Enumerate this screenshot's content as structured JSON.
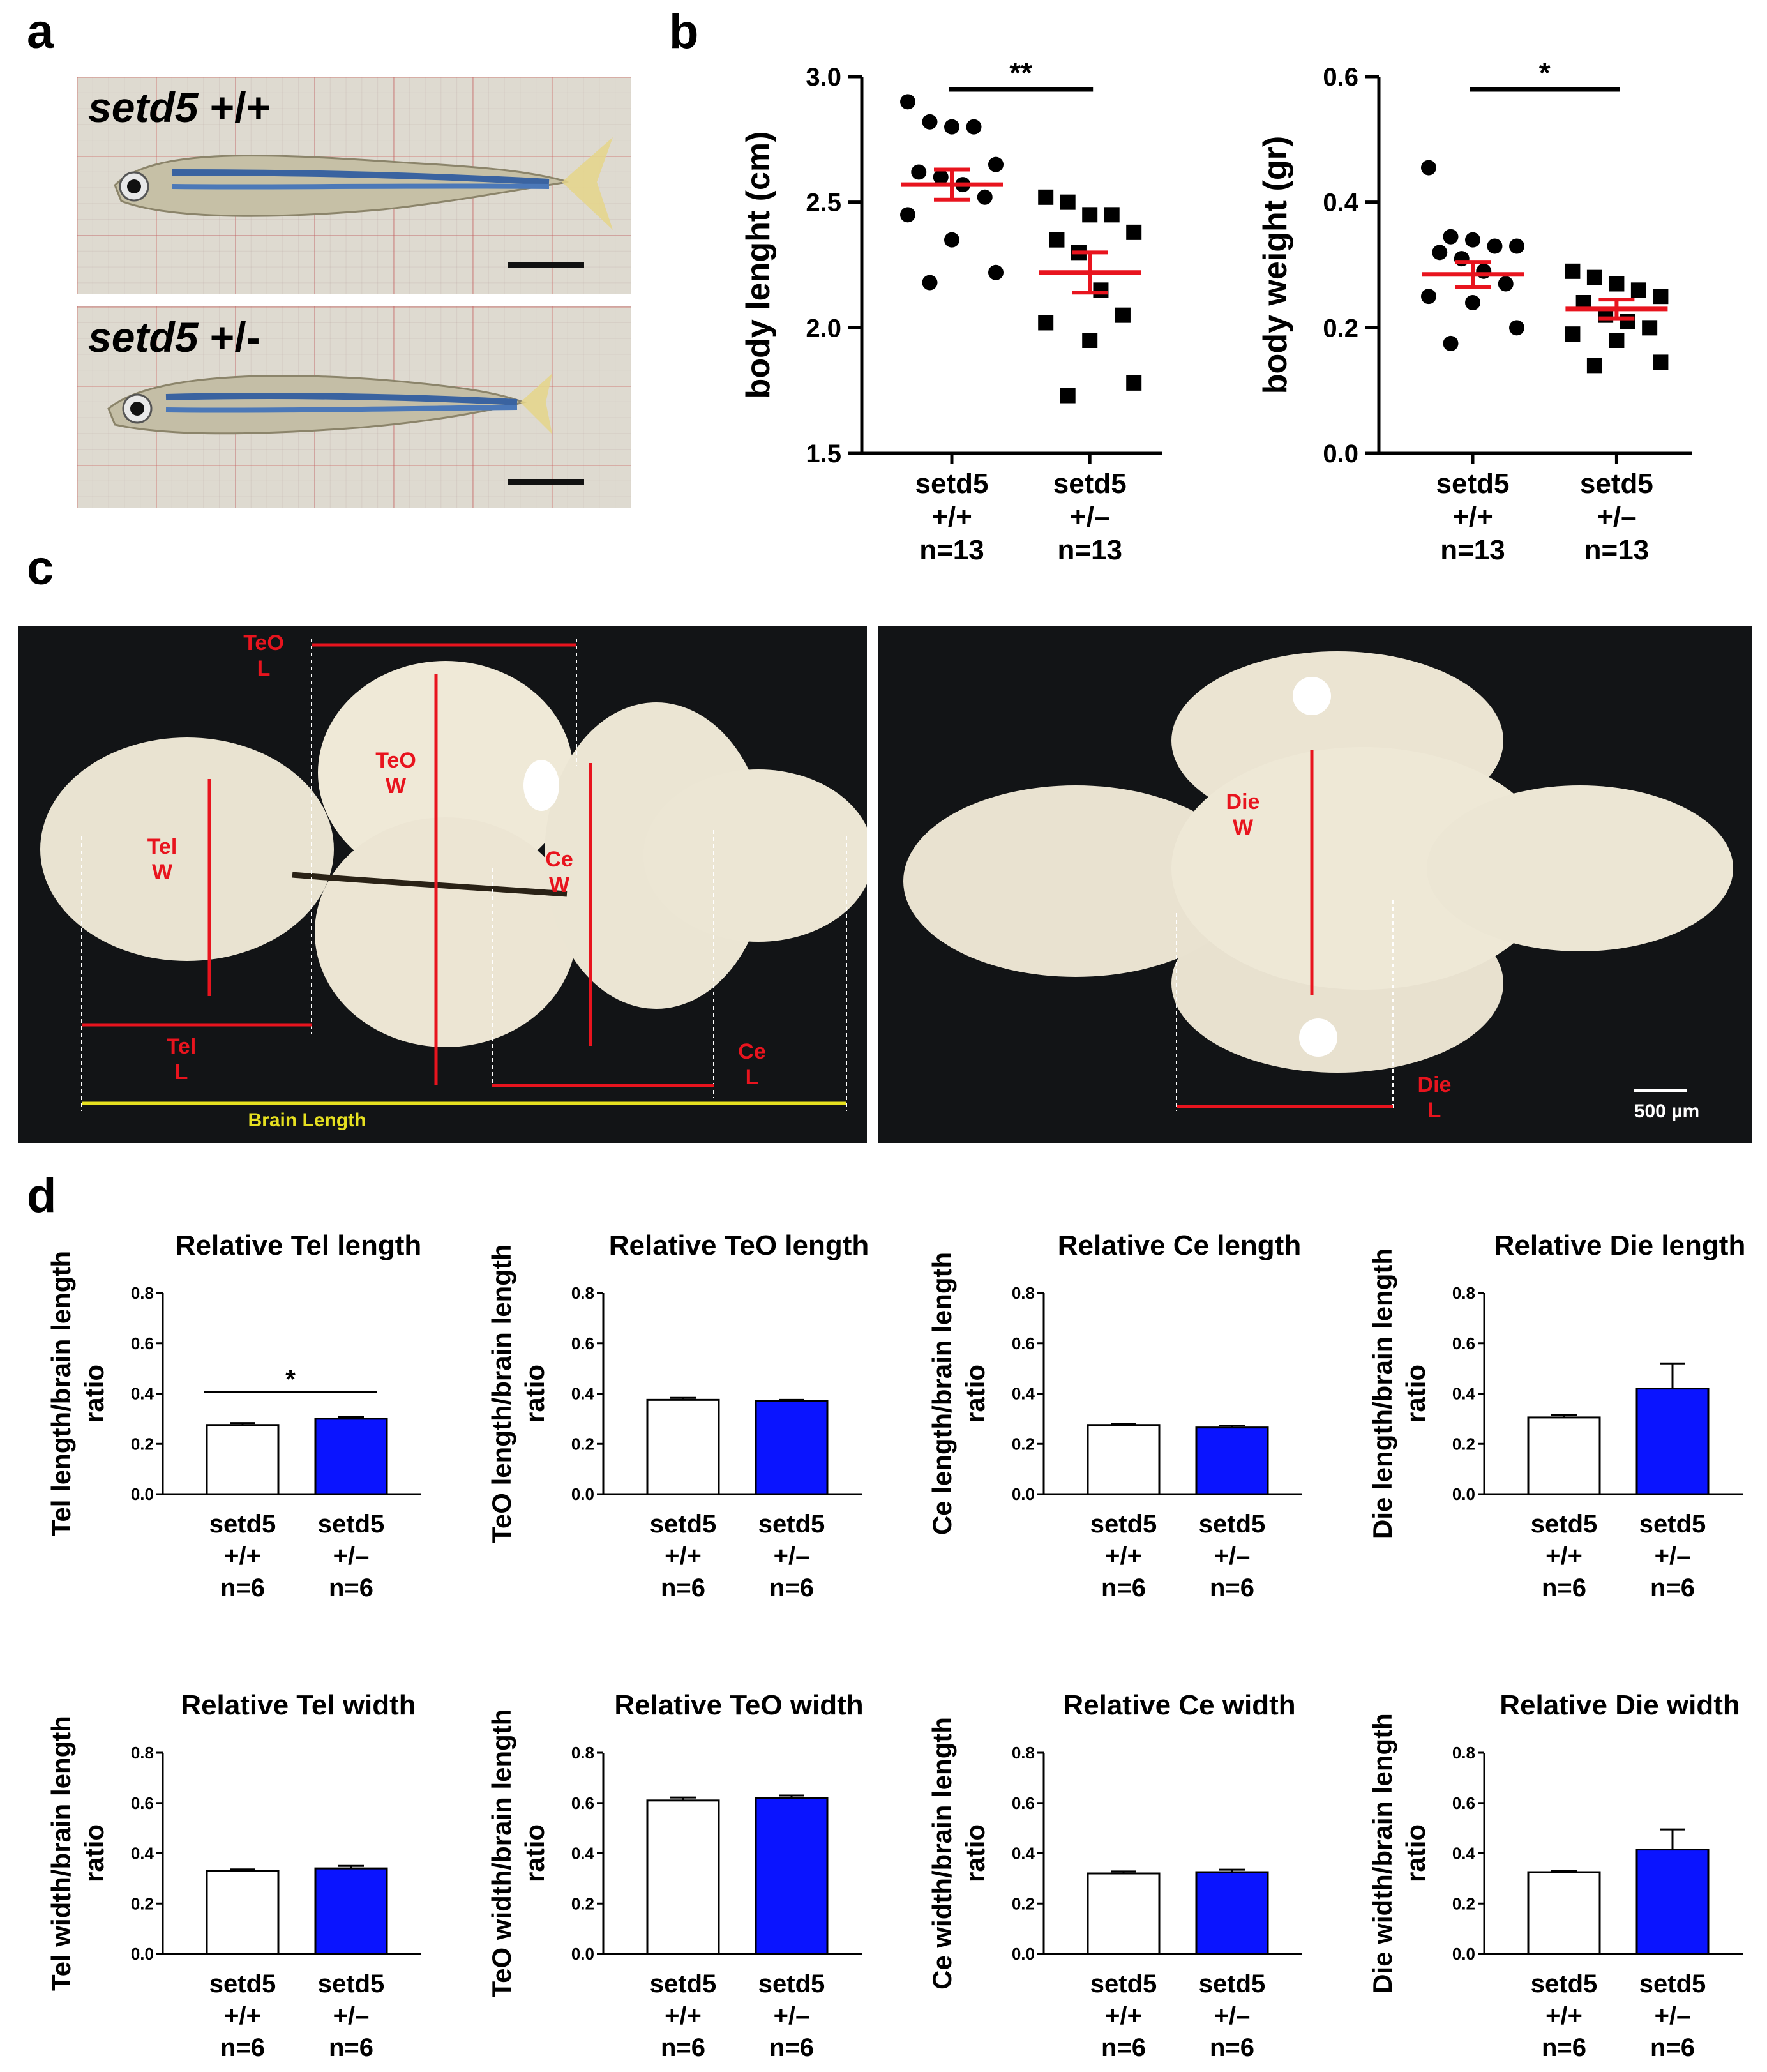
{
  "panel_labels": {
    "a": "a",
    "b": "b",
    "c": "c",
    "d": "d"
  },
  "fish_photos": [
    {
      "genotype_name": "setd5",
      "genotype_suffix": " +/+"
    },
    {
      "genotype_name": "setd5",
      "genotype_suffix": " +/-"
    }
  ],
  "brain_photos": {
    "dorsal_labels": {
      "teo_l": "TeO\nL",
      "teo_w": "TeO\nW",
      "tel_w": "Tel\nW",
      "ce_w": "Ce\nW",
      "tel_l": "Tel\nL",
      "ce_l": "Ce\nL",
      "brain_length": "Brain Length"
    },
    "ventral_labels": {
      "die_w": "Die\nW",
      "die_l": "Die\nL",
      "scale": "500 µm"
    }
  },
  "colors": {
    "wt_fill": "#ffffff",
    "het_fill": "#0a14ff",
    "mean_line": "#e8141e",
    "annotation": "#e8141e",
    "brain_length_line": "#e6e020"
  },
  "chart_data": [
    {
      "id": "body-length",
      "type": "scatter",
      "panel": "b",
      "ylabel": "body lenght (cm)",
      "ylim": [
        1.5,
        3.0
      ],
      "yticks": [
        "1.5",
        "2.0",
        "2.5",
        "3.0"
      ],
      "groups": [
        {
          "label": [
            "setd5",
            "+/+",
            "n=13"
          ],
          "marker": "circle",
          "mean": 2.57,
          "sem": 0.06,
          "points": [
            2.9,
            2.82,
            2.8,
            2.8,
            2.65,
            2.62,
            2.6,
            2.57,
            2.52,
            2.45,
            2.35,
            2.22,
            2.18
          ]
        },
        {
          "label": [
            "setd5",
            "+/–",
            "n=13"
          ],
          "marker": "square",
          "mean": 2.22,
          "sem": 0.08,
          "points": [
            2.52,
            2.5,
            2.45,
            2.45,
            2.38,
            2.35,
            2.3,
            2.15,
            2.05,
            2.02,
            1.95,
            1.78,
            1.73
          ]
        }
      ],
      "significance": "**"
    },
    {
      "id": "body-weight",
      "type": "scatter",
      "panel": "b",
      "ylabel": "body weight (gr)",
      "ylim": [
        0.0,
        0.6
      ],
      "yticks": [
        "0.0",
        "0.2",
        "0.4",
        "0.6"
      ],
      "groups": [
        {
          "label": [
            "setd5",
            "+/+",
            "n=13"
          ],
          "marker": "circle",
          "mean": 0.285,
          "sem": 0.02,
          "points": [
            0.455,
            0.345,
            0.34,
            0.33,
            0.33,
            0.32,
            0.31,
            0.29,
            0.27,
            0.25,
            0.24,
            0.2,
            0.175
          ]
        },
        {
          "label": [
            "setd5",
            "+/–",
            "n=13"
          ],
          "marker": "square",
          "mean": 0.23,
          "sem": 0.015,
          "points": [
            0.29,
            0.28,
            0.27,
            0.26,
            0.25,
            0.24,
            0.22,
            0.21,
            0.2,
            0.19,
            0.18,
            0.145,
            0.14
          ]
        }
      ],
      "significance": "*"
    },
    {
      "id": "tel-length",
      "type": "bar",
      "panel": "d",
      "title": "Relative Tel length",
      "ylabel": "Tel length/brain length ratio",
      "ylim": [
        0,
        0.8
      ],
      "yticks": [
        "0.0",
        "0.2",
        "0.4",
        "0.6",
        "0.8"
      ],
      "categories": [
        [
          "setd5",
          "+/+",
          "n=6"
        ],
        [
          "setd5",
          "+/–",
          "n=6"
        ]
      ],
      "values": [
        0.275,
        0.3
      ],
      "errors": [
        0.008,
        0.006
      ],
      "significance": "*"
    },
    {
      "id": "teo-length",
      "type": "bar",
      "panel": "d",
      "title": "Relative TeO length",
      "ylabel": "TeO length/brain length ratio",
      "ylim": [
        0,
        0.8
      ],
      "yticks": [
        "0.0",
        "0.2",
        "0.4",
        "0.6",
        "0.8"
      ],
      "categories": [
        [
          "setd5",
          "+/+",
          "n=6"
        ],
        [
          "setd5",
          "+/–",
          "n=6"
        ]
      ],
      "values": [
        0.375,
        0.37
      ],
      "errors": [
        0.008,
        0.005
      ],
      "significance": ""
    },
    {
      "id": "ce-length",
      "type": "bar",
      "panel": "d",
      "title": "Relative Ce length",
      "ylabel": "Ce length/brain length ratio",
      "ylim": [
        0,
        0.8
      ],
      "yticks": [
        "0.0",
        "0.2",
        "0.4",
        "0.6",
        "0.8"
      ],
      "categories": [
        [
          "setd5",
          "+/+",
          "n=6"
        ],
        [
          "setd5",
          "+/–",
          "n=6"
        ]
      ],
      "values": [
        0.275,
        0.265
      ],
      "errors": [
        0.004,
        0.008
      ],
      "significance": ""
    },
    {
      "id": "die-length",
      "type": "bar",
      "panel": "d",
      "title": "Relative Die length",
      "ylabel": "Die length/brain length ratio",
      "ylim": [
        0,
        0.8
      ],
      "yticks": [
        "0.0",
        "0.2",
        "0.4",
        "0.6",
        "0.8"
      ],
      "categories": [
        [
          "setd5",
          "+/+",
          "n=6"
        ],
        [
          "setd5",
          "+/–",
          "n=6"
        ]
      ],
      "values": [
        0.305,
        0.42
      ],
      "errors": [
        0.01,
        0.1
      ],
      "significance": ""
    },
    {
      "id": "tel-width",
      "type": "bar",
      "panel": "d",
      "title": "Relative Tel width",
      "ylabel": "Tel width/brain length ratio",
      "ylim": [
        0,
        0.8
      ],
      "yticks": [
        "0.0",
        "0.2",
        "0.4",
        "0.6",
        "0.8"
      ],
      "categories": [
        [
          "setd5",
          "+/+",
          "n=6"
        ],
        [
          "setd5",
          "+/–",
          "n=6"
        ]
      ],
      "values": [
        0.33,
        0.34
      ],
      "errors": [
        0.006,
        0.01
      ],
      "significance": ""
    },
    {
      "id": "teo-width",
      "type": "bar",
      "panel": "d",
      "title": "Relative TeO width",
      "ylabel": "TeO width/brain length ratio",
      "ylim": [
        0,
        0.8
      ],
      "yticks": [
        "0.0",
        "0.2",
        "0.4",
        "0.6",
        "0.8"
      ],
      "categories": [
        [
          "setd5",
          "+/+",
          "n=6"
        ],
        [
          "setd5",
          "+/–",
          "n=6"
        ]
      ],
      "values": [
        0.61,
        0.62
      ],
      "errors": [
        0.012,
        0.01
      ],
      "significance": ""
    },
    {
      "id": "ce-width",
      "type": "bar",
      "panel": "d",
      "title": "Relative Ce width",
      "ylabel": "Ce width/brain length ratio",
      "ylim": [
        0,
        0.8
      ],
      "yticks": [
        "0.0",
        "0.2",
        "0.4",
        "0.6",
        "0.8"
      ],
      "categories": [
        [
          "setd5",
          "+/+",
          "n=6"
        ],
        [
          "setd5",
          "+/–",
          "n=6"
        ]
      ],
      "values": [
        0.32,
        0.325
      ],
      "errors": [
        0.008,
        0.01
      ],
      "significance": ""
    },
    {
      "id": "die-width",
      "type": "bar",
      "panel": "d",
      "title": "Relative Die width",
      "ylabel": "Die width/brain length ratio",
      "ylim": [
        0,
        0.8
      ],
      "yticks": [
        "0.0",
        "0.2",
        "0.4",
        "0.6",
        "0.8"
      ],
      "categories": [
        [
          "setd5",
          "+/+",
          "n=6"
        ],
        [
          "setd5",
          "+/–",
          "n=6"
        ]
      ],
      "values": [
        0.325,
        0.415
      ],
      "errors": [
        0.004,
        0.08
      ],
      "significance": ""
    }
  ]
}
